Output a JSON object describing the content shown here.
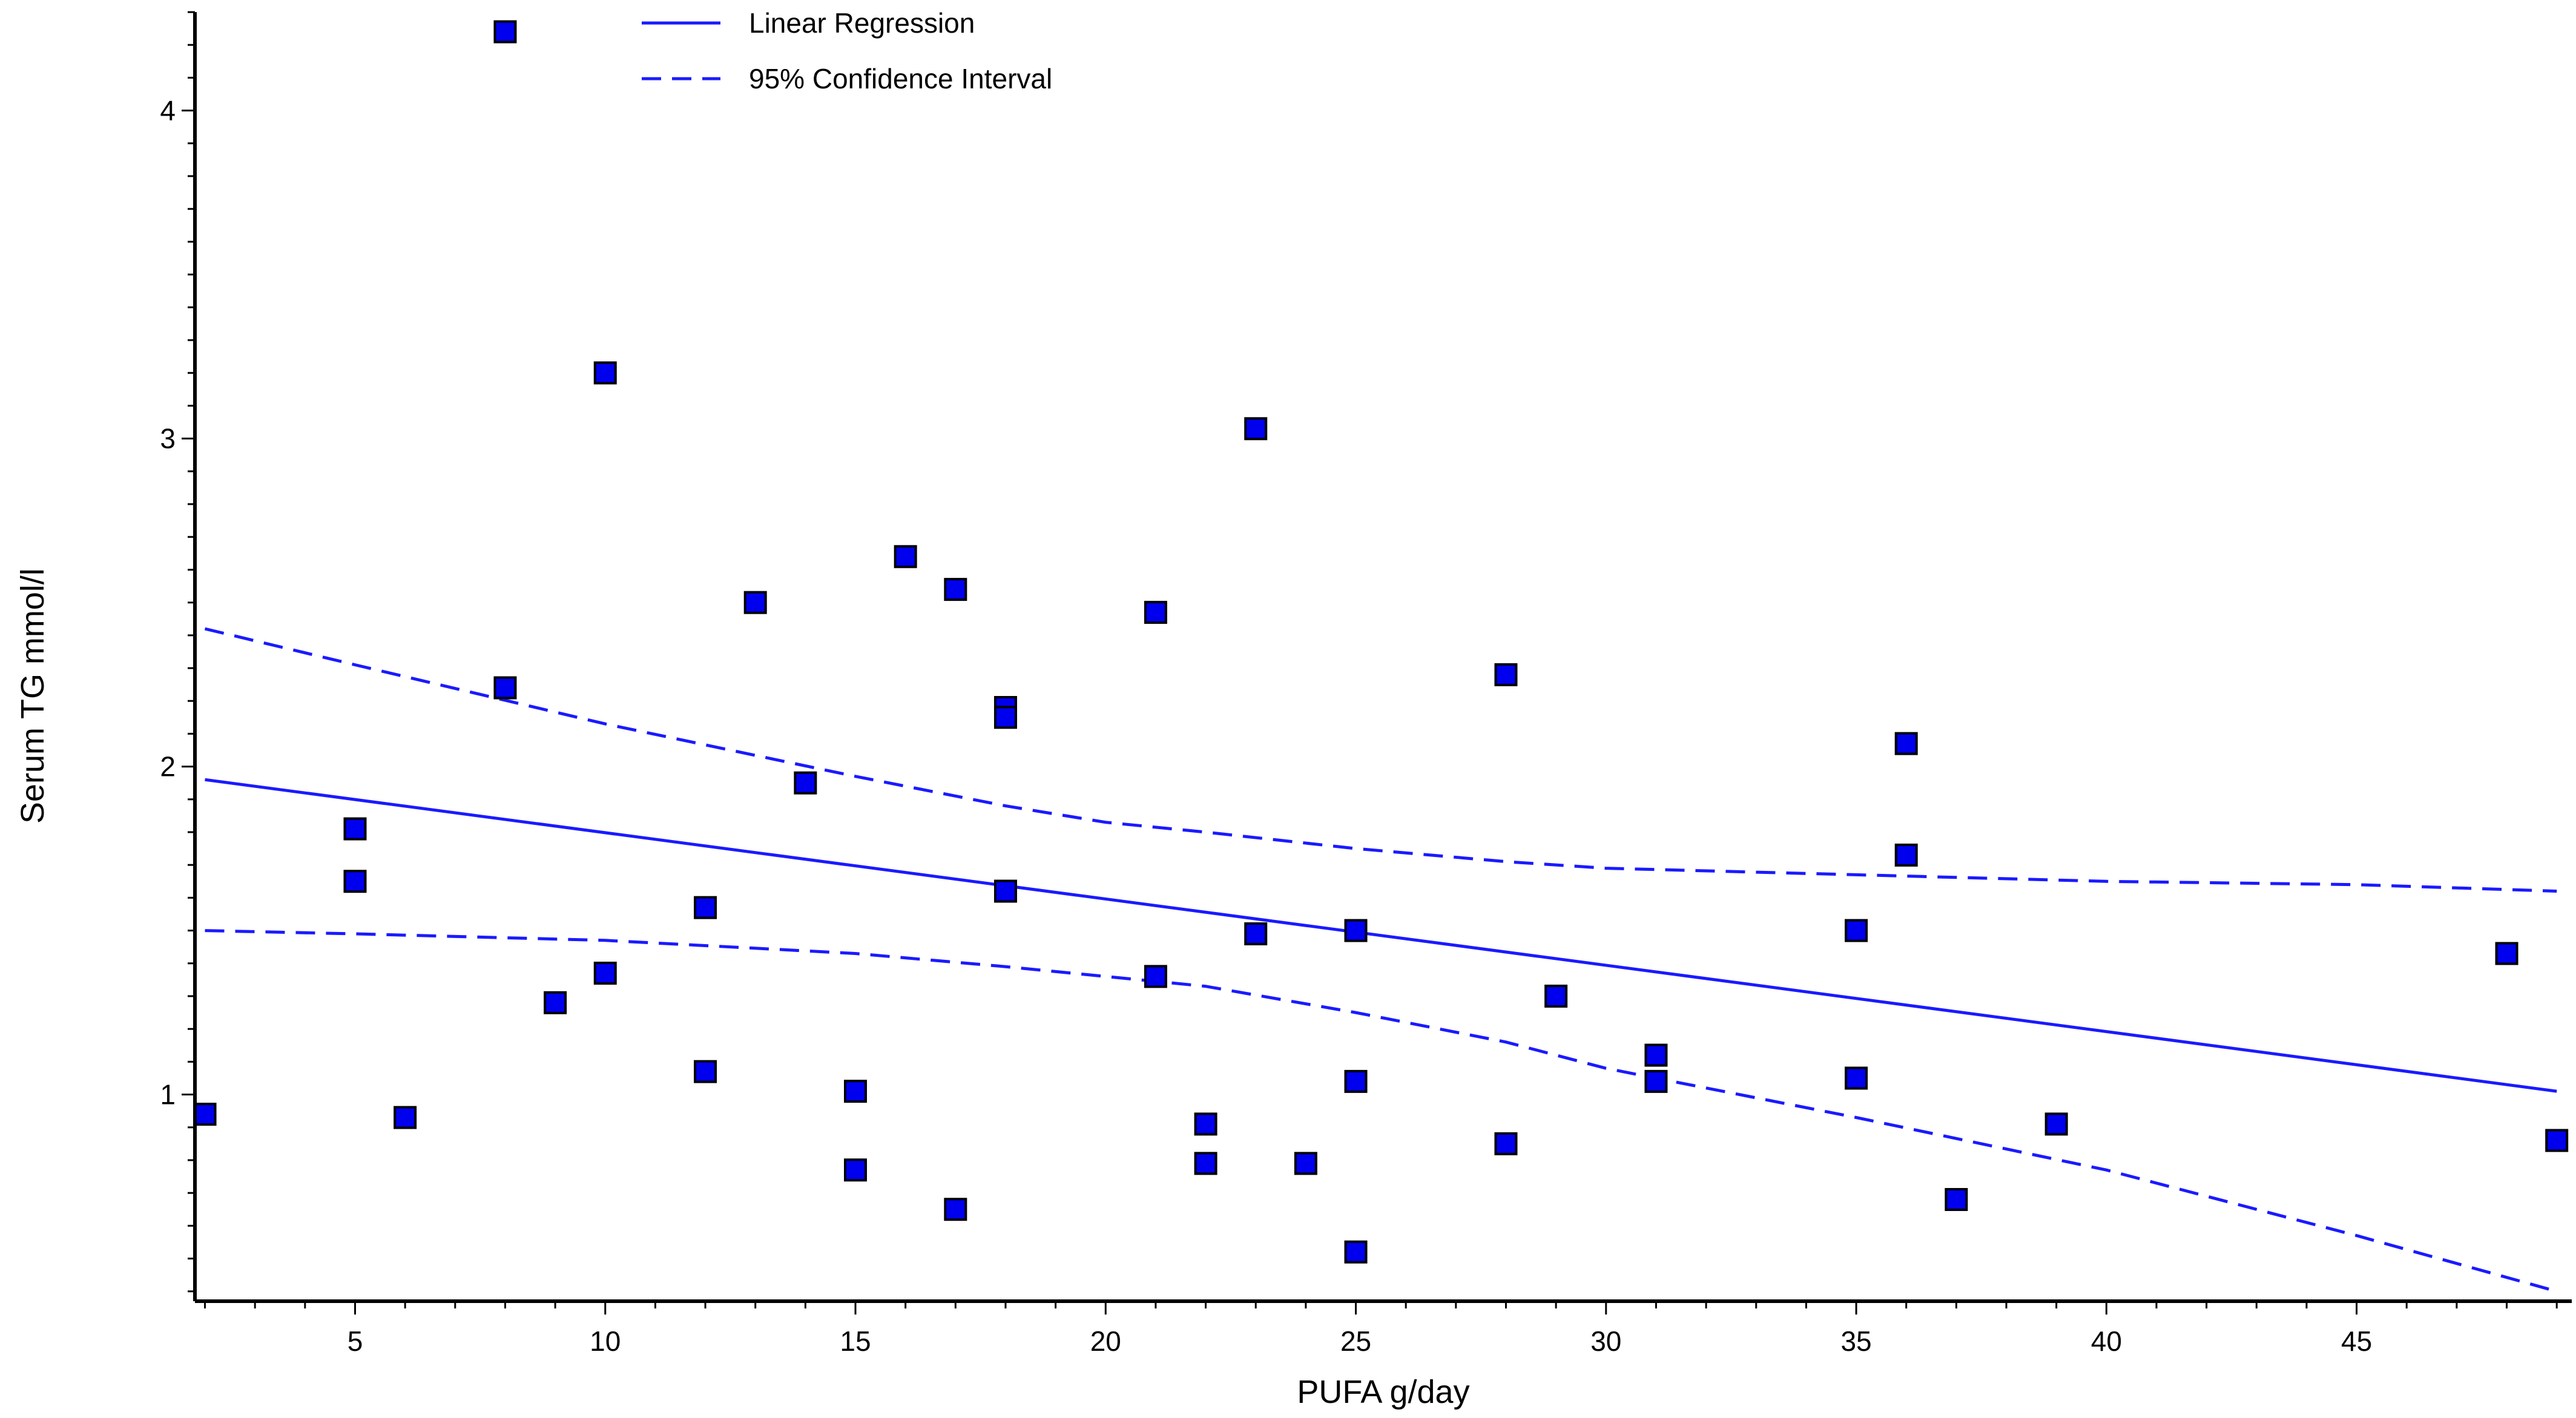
{
  "chart_data": {
    "type": "scatter",
    "title": "",
    "xlabel": "PUFA g/day",
    "ylabel": "Serum TG mmol/l",
    "xlim": [
      1.8,
      49.3
    ],
    "ylim": [
      0.37,
      4.3
    ],
    "x_ticks": [
      5,
      10,
      15,
      20,
      25,
      30,
      35,
      40,
      45
    ],
    "y_ticks": [
      1,
      2,
      3,
      4
    ],
    "grid": false,
    "legend_position": "top-center",
    "colors": {
      "points": "#0000ee",
      "point_stroke": "#000000",
      "regression": "#1a1aff",
      "ci": "#1a1aff",
      "axis": "#000000"
    },
    "legend": [
      {
        "label": "Linear Regression",
        "style": "solid"
      },
      {
        "label": "95% Confidence Interval",
        "style": "dashed"
      }
    ],
    "series": [
      {
        "name": "Observations",
        "x": [
          2,
          5,
          5,
          6,
          8,
          8,
          9,
          10,
          10,
          12,
          12,
          13,
          14,
          15,
          15,
          16,
          17,
          17,
          18,
          18,
          18,
          21,
          21,
          22,
          22,
          23,
          23,
          24,
          25,
          25,
          25,
          28,
          28,
          29,
          31,
          31,
          35,
          35,
          36,
          36,
          37,
          39,
          48,
          49
        ],
        "y": [
          0.94,
          1.81,
          1.65,
          0.93,
          4.24,
          2.24,
          1.28,
          3.2,
          1.37,
          1.57,
          1.07,
          2.5,
          1.95,
          1.01,
          0.77,
          2.64,
          2.54,
          0.65,
          2.18,
          2.15,
          1.62,
          2.47,
          1.36,
          0.91,
          0.79,
          3.03,
          1.49,
          0.79,
          1.5,
          1.04,
          0.52,
          2.28,
          0.85,
          1.3,
          1.12,
          1.04,
          1.5,
          1.05,
          2.07,
          1.73,
          0.68,
          0.91,
          1.43,
          0.86
        ]
      }
    ],
    "regression": {
      "label": "Linear Regression",
      "x": [
        2,
        49
      ],
      "y": [
        1.96,
        1.01
      ]
    },
    "confidence_interval": {
      "label": "95% Confidence Interval",
      "x": [
        2,
        5,
        10,
        15,
        18,
        20,
        22,
        25,
        28,
        30,
        35,
        40,
        45,
        49
      ],
      "upper": [
        2.42,
        2.31,
        2.13,
        1.97,
        1.88,
        1.83,
        1.8,
        1.75,
        1.71,
        1.69,
        1.67,
        1.65,
        1.64,
        1.62
      ],
      "lower": [
        1.5,
        1.49,
        1.47,
        1.43,
        1.39,
        1.36,
        1.33,
        1.25,
        1.16,
        1.08,
        0.93,
        0.77,
        0.57,
        0.4
      ]
    }
  }
}
